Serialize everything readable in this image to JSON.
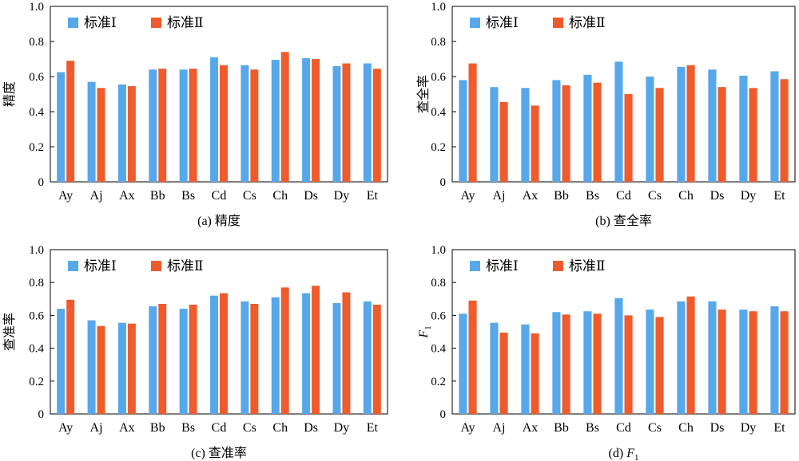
{
  "colors": {
    "series_1": "#56a8ea",
    "series_2": "#ef5b2c",
    "axis": "#000000"
  },
  "chart_data": [
    {
      "type": "bar",
      "caption": "(a) 精度",
      "ylabel": "精度",
      "ylim": [
        0,
        1.0
      ],
      "yticks": [
        "0",
        "0.2",
        "0.4",
        "0.6",
        "0.8",
        "1.0"
      ],
      "categories": [
        "Ay",
        "Aj",
        "Ax",
        "Bb",
        "Bs",
        "Cd",
        "Cs",
        "Ch",
        "Ds",
        "Dy",
        "Et"
      ],
      "legend_position": "top-left",
      "grid": false,
      "series": [
        {
          "name": "标准Ⅰ",
          "values": [
            0.625,
            0.57,
            0.555,
            0.64,
            0.64,
            0.71,
            0.665,
            0.695,
            0.705,
            0.66,
            0.675
          ]
        },
        {
          "name": "标准Ⅱ",
          "values": [
            0.69,
            0.535,
            0.545,
            0.645,
            0.645,
            0.665,
            0.64,
            0.74,
            0.7,
            0.675,
            0.645
          ]
        }
      ]
    },
    {
      "type": "bar",
      "caption": "(b) 查全率",
      "ylabel": "查全率",
      "ylim": [
        0,
        1.0
      ],
      "yticks": [
        "0",
        "0.2",
        "0.4",
        "0.6",
        "0.8",
        "1.0"
      ],
      "categories": [
        "Ay",
        "Aj",
        "Ax",
        "Bb",
        "Bs",
        "Cd",
        "Cs",
        "Ch",
        "Ds",
        "Dy",
        "Et"
      ],
      "legend_position": "top-left",
      "grid": false,
      "series": [
        {
          "name": "标准Ⅰ",
          "values": [
            0.58,
            0.54,
            0.535,
            0.58,
            0.61,
            0.685,
            0.6,
            0.655,
            0.64,
            0.605,
            0.63
          ]
        },
        {
          "name": "标准Ⅱ",
          "values": [
            0.675,
            0.455,
            0.435,
            0.55,
            0.565,
            0.5,
            0.535,
            0.665,
            0.54,
            0.535,
            0.585
          ]
        }
      ]
    },
    {
      "type": "bar",
      "caption": "(c) 查准率",
      "ylabel": "查准率",
      "ylim": [
        0,
        1.0
      ],
      "yticks": [
        "0",
        "0.2",
        "0.4",
        "0.6",
        "0.8",
        "1.0"
      ],
      "categories": [
        "Ay",
        "Aj",
        "Ax",
        "Bb",
        "Bs",
        "Cd",
        "Cs",
        "Ch",
        "Ds",
        "Dy",
        "Et"
      ],
      "legend_position": "top-left",
      "grid": false,
      "series": [
        {
          "name": "标准Ⅰ",
          "values": [
            0.64,
            0.57,
            0.555,
            0.655,
            0.64,
            0.72,
            0.685,
            0.71,
            0.735,
            0.675,
            0.685
          ]
        },
        {
          "name": "标准Ⅱ",
          "values": [
            0.695,
            0.535,
            0.55,
            0.67,
            0.665,
            0.735,
            0.67,
            0.77,
            0.78,
            0.74,
            0.665
          ]
        }
      ]
    },
    {
      "type": "bar",
      "caption_prefix": "(d)",
      "caption_var": "F",
      "caption_sub": "1",
      "ylabel_var": "F",
      "ylabel_sub": "1",
      "ylim": [
        0,
        1.0
      ],
      "yticks": [
        "0",
        "0.2",
        "0.4",
        "0.6",
        "0.8",
        "1.0"
      ],
      "categories": [
        "Ay",
        "Aj",
        "Ax",
        "Bb",
        "Bs",
        "Cd",
        "Cs",
        "Ch",
        "Ds",
        "Dy",
        "Et"
      ],
      "legend_position": "top-left",
      "grid": false,
      "series": [
        {
          "name": "标准Ⅰ",
          "values": [
            0.61,
            0.555,
            0.545,
            0.62,
            0.625,
            0.705,
            0.635,
            0.685,
            0.685,
            0.635,
            0.655
          ]
        },
        {
          "name": "标准Ⅱ",
          "values": [
            0.69,
            0.495,
            0.49,
            0.605,
            0.61,
            0.6,
            0.59,
            0.715,
            0.635,
            0.625,
            0.625
          ]
        }
      ]
    }
  ]
}
